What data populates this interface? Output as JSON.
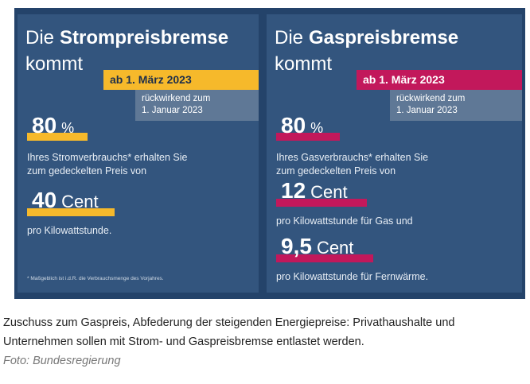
{
  "panels": [
    {
      "title_prefix": "Die",
      "title_bold": "Strompreisbremse",
      "title_line2": "kommt",
      "accent": "#f6b92b",
      "badge_text_color": "#1f2f4a",
      "date_badge": "ab 1. März 2023",
      "retro_lines": [
        "rückwirkend zum",
        "1. Januar 2023"
      ],
      "share": "80",
      "share_unit": "%",
      "share_lines": [
        "Ihres Stromverbrauchs* erhalten Sie",
        "zum gedeckelten Preis von"
      ],
      "prices": [
        {
          "amount": "40",
          "unit": "Cent",
          "lines": [
            "pro Kilowattstunde."
          ]
        }
      ],
      "footnote": "* Maßgeblich ist i.d.R. die Verbrauchsmenge des Vorjahres."
    },
    {
      "title_prefix": "Die",
      "title_bold": "Gaspreisbremse",
      "title_line2": "kommt",
      "accent": "#c2185b",
      "badge_text_color": "#ffffff",
      "date_badge": "ab 1. März 2023",
      "retro_lines": [
        "rückwirkend zum",
        "1. Januar 2023"
      ],
      "share": "80",
      "share_unit": "%",
      "share_lines": [
        "Ihres Gasverbrauchs* erhalten Sie",
        "zum gedeckelten Preis von"
      ],
      "prices": [
        {
          "amount": "12",
          "unit": "Cent",
          "lines": [
            "pro Kilowattstunde für Gas und"
          ]
        },
        {
          "amount": "9,5",
          "unit": "Cent",
          "lines": [
            "pro Kilowattstunde für Fernwärme."
          ]
        }
      ]
    }
  ],
  "caption_lines": [
    "Zuschuss zum Gaspreis, Abfederung der steigenden Energiepreise: Privathaushalte und",
    "Unternehmen sollen mit Strom- und Gaspreisbremse entlastet werden."
  ],
  "credit": "Foto: Bundesregierung"
}
